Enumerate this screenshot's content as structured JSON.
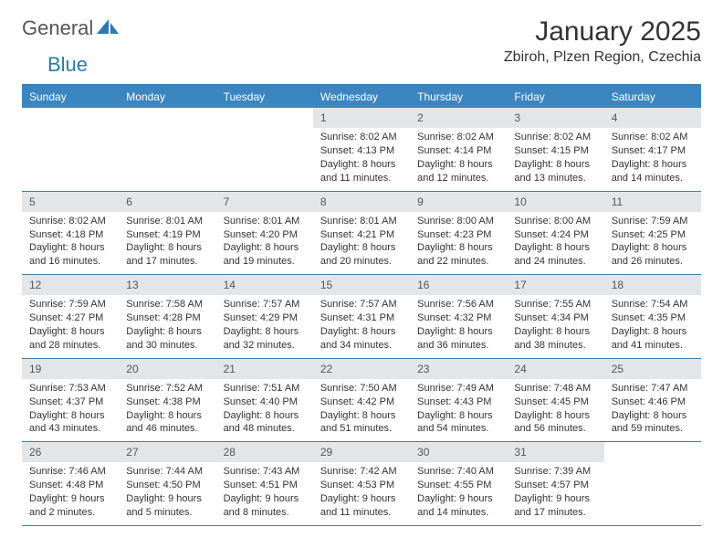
{
  "logo": {
    "text1": "General",
    "text2": "Blue"
  },
  "title": "January 2025",
  "location": "Zbiroh, Plzen Region, Czechia",
  "colors": {
    "header_band": "#3b86c0",
    "rule": "#3a7fb5",
    "daynum_bg": "#e3e6e8",
    "text": "#333333",
    "logo_blue": "#2a7ab0"
  },
  "daysOfWeek": [
    "Sunday",
    "Monday",
    "Tuesday",
    "Wednesday",
    "Thursday",
    "Friday",
    "Saturday"
  ],
  "weeks": [
    [
      {
        "n": "",
        "sr": "",
        "ss": "",
        "dl": ""
      },
      {
        "n": "",
        "sr": "",
        "ss": "",
        "dl": ""
      },
      {
        "n": "",
        "sr": "",
        "ss": "",
        "dl": ""
      },
      {
        "n": "1",
        "sr": "Sunrise: 8:02 AM",
        "ss": "Sunset: 4:13 PM",
        "dl": "Daylight: 8 hours and 11 minutes."
      },
      {
        "n": "2",
        "sr": "Sunrise: 8:02 AM",
        "ss": "Sunset: 4:14 PM",
        "dl": "Daylight: 8 hours and 12 minutes."
      },
      {
        "n": "3",
        "sr": "Sunrise: 8:02 AM",
        "ss": "Sunset: 4:15 PM",
        "dl": "Daylight: 8 hours and 13 minutes."
      },
      {
        "n": "4",
        "sr": "Sunrise: 8:02 AM",
        "ss": "Sunset: 4:17 PM",
        "dl": "Daylight: 8 hours and 14 minutes."
      }
    ],
    [
      {
        "n": "5",
        "sr": "Sunrise: 8:02 AM",
        "ss": "Sunset: 4:18 PM",
        "dl": "Daylight: 8 hours and 16 minutes."
      },
      {
        "n": "6",
        "sr": "Sunrise: 8:01 AM",
        "ss": "Sunset: 4:19 PM",
        "dl": "Daylight: 8 hours and 17 minutes."
      },
      {
        "n": "7",
        "sr": "Sunrise: 8:01 AM",
        "ss": "Sunset: 4:20 PM",
        "dl": "Daylight: 8 hours and 19 minutes."
      },
      {
        "n": "8",
        "sr": "Sunrise: 8:01 AM",
        "ss": "Sunset: 4:21 PM",
        "dl": "Daylight: 8 hours and 20 minutes."
      },
      {
        "n": "9",
        "sr": "Sunrise: 8:00 AM",
        "ss": "Sunset: 4:23 PM",
        "dl": "Daylight: 8 hours and 22 minutes."
      },
      {
        "n": "10",
        "sr": "Sunrise: 8:00 AM",
        "ss": "Sunset: 4:24 PM",
        "dl": "Daylight: 8 hours and 24 minutes."
      },
      {
        "n": "11",
        "sr": "Sunrise: 7:59 AM",
        "ss": "Sunset: 4:25 PM",
        "dl": "Daylight: 8 hours and 26 minutes."
      }
    ],
    [
      {
        "n": "12",
        "sr": "Sunrise: 7:59 AM",
        "ss": "Sunset: 4:27 PM",
        "dl": "Daylight: 8 hours and 28 minutes."
      },
      {
        "n": "13",
        "sr": "Sunrise: 7:58 AM",
        "ss": "Sunset: 4:28 PM",
        "dl": "Daylight: 8 hours and 30 minutes."
      },
      {
        "n": "14",
        "sr": "Sunrise: 7:57 AM",
        "ss": "Sunset: 4:29 PM",
        "dl": "Daylight: 8 hours and 32 minutes."
      },
      {
        "n": "15",
        "sr": "Sunrise: 7:57 AM",
        "ss": "Sunset: 4:31 PM",
        "dl": "Daylight: 8 hours and 34 minutes."
      },
      {
        "n": "16",
        "sr": "Sunrise: 7:56 AM",
        "ss": "Sunset: 4:32 PM",
        "dl": "Daylight: 8 hours and 36 minutes."
      },
      {
        "n": "17",
        "sr": "Sunrise: 7:55 AM",
        "ss": "Sunset: 4:34 PM",
        "dl": "Daylight: 8 hours and 38 minutes."
      },
      {
        "n": "18",
        "sr": "Sunrise: 7:54 AM",
        "ss": "Sunset: 4:35 PM",
        "dl": "Daylight: 8 hours and 41 minutes."
      }
    ],
    [
      {
        "n": "19",
        "sr": "Sunrise: 7:53 AM",
        "ss": "Sunset: 4:37 PM",
        "dl": "Daylight: 8 hours and 43 minutes."
      },
      {
        "n": "20",
        "sr": "Sunrise: 7:52 AM",
        "ss": "Sunset: 4:38 PM",
        "dl": "Daylight: 8 hours and 46 minutes."
      },
      {
        "n": "21",
        "sr": "Sunrise: 7:51 AM",
        "ss": "Sunset: 4:40 PM",
        "dl": "Daylight: 8 hours and 48 minutes."
      },
      {
        "n": "22",
        "sr": "Sunrise: 7:50 AM",
        "ss": "Sunset: 4:42 PM",
        "dl": "Daylight: 8 hours and 51 minutes."
      },
      {
        "n": "23",
        "sr": "Sunrise: 7:49 AM",
        "ss": "Sunset: 4:43 PM",
        "dl": "Daylight: 8 hours and 54 minutes."
      },
      {
        "n": "24",
        "sr": "Sunrise: 7:48 AM",
        "ss": "Sunset: 4:45 PM",
        "dl": "Daylight: 8 hours and 56 minutes."
      },
      {
        "n": "25",
        "sr": "Sunrise: 7:47 AM",
        "ss": "Sunset: 4:46 PM",
        "dl": "Daylight: 8 hours and 59 minutes."
      }
    ],
    [
      {
        "n": "26",
        "sr": "Sunrise: 7:46 AM",
        "ss": "Sunset: 4:48 PM",
        "dl": "Daylight: 9 hours and 2 minutes."
      },
      {
        "n": "27",
        "sr": "Sunrise: 7:44 AM",
        "ss": "Sunset: 4:50 PM",
        "dl": "Daylight: 9 hours and 5 minutes."
      },
      {
        "n": "28",
        "sr": "Sunrise: 7:43 AM",
        "ss": "Sunset: 4:51 PM",
        "dl": "Daylight: 9 hours and 8 minutes."
      },
      {
        "n": "29",
        "sr": "Sunrise: 7:42 AM",
        "ss": "Sunset: 4:53 PM",
        "dl": "Daylight: 9 hours and 11 minutes."
      },
      {
        "n": "30",
        "sr": "Sunrise: 7:40 AM",
        "ss": "Sunset: 4:55 PM",
        "dl": "Daylight: 9 hours and 14 minutes."
      },
      {
        "n": "31",
        "sr": "Sunrise: 7:39 AM",
        "ss": "Sunset: 4:57 PM",
        "dl": "Daylight: 9 hours and 17 minutes."
      },
      {
        "n": "",
        "sr": "",
        "ss": "",
        "dl": ""
      }
    ]
  ]
}
